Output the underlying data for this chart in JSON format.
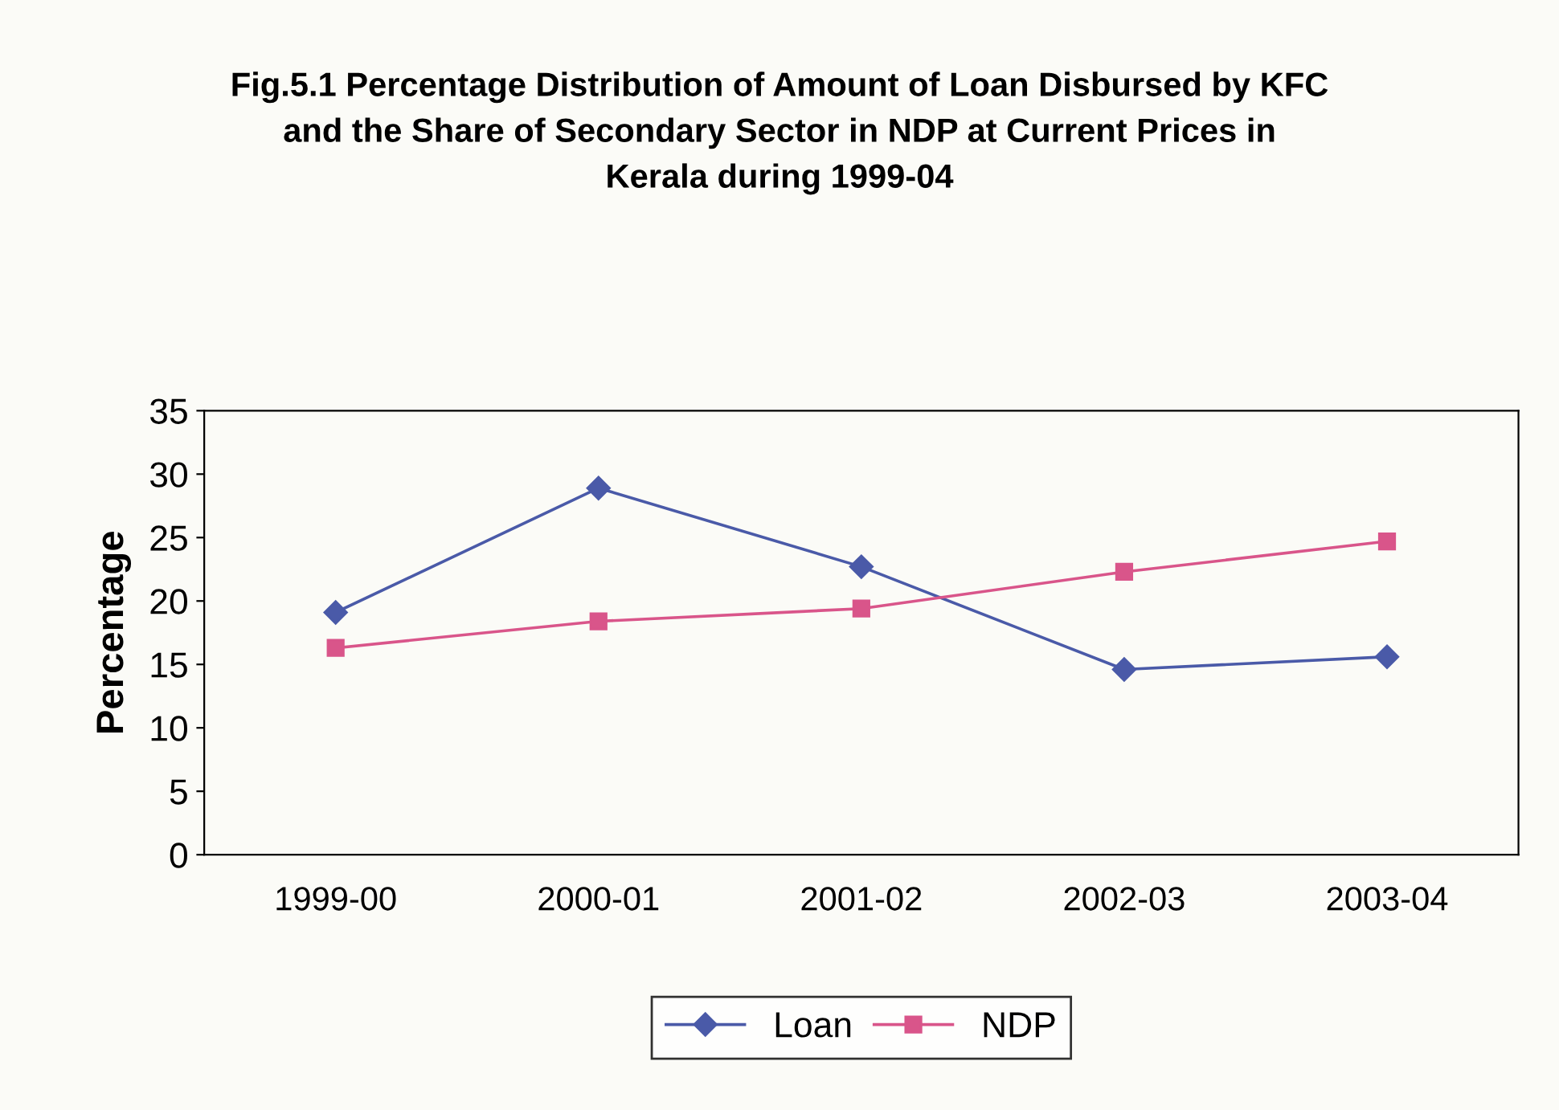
{
  "chart_data": {
    "type": "line",
    "title": "Fig.5.1 Percentage Distribution of Amount of Loan Disbursed by KFC\nand the Share of Secondary Sector in NDP at Current Prices in\nKerala during 1999-04",
    "ylabel": "Percentage",
    "categories": [
      "1999-00",
      "2000-01",
      "2001-02",
      "2002-03",
      "2003-04"
    ],
    "series": [
      {
        "name": "Loan",
        "color": "#4a5aa8",
        "marker": "diamond",
        "values": [
          19.1,
          28.9,
          22.7,
          14.6,
          15.6
        ]
      },
      {
        "name": "NDP",
        "color": "#d9558a",
        "marker": "square",
        "values": [
          16.3,
          18.4,
          19.4,
          22.3,
          24.7
        ]
      }
    ],
    "ylim": [
      0,
      35
    ],
    "yticks": [
      0,
      5,
      10,
      15,
      20,
      25,
      30,
      35
    ],
    "grid": false,
    "legend": "bottom",
    "line_style": "solid"
  }
}
